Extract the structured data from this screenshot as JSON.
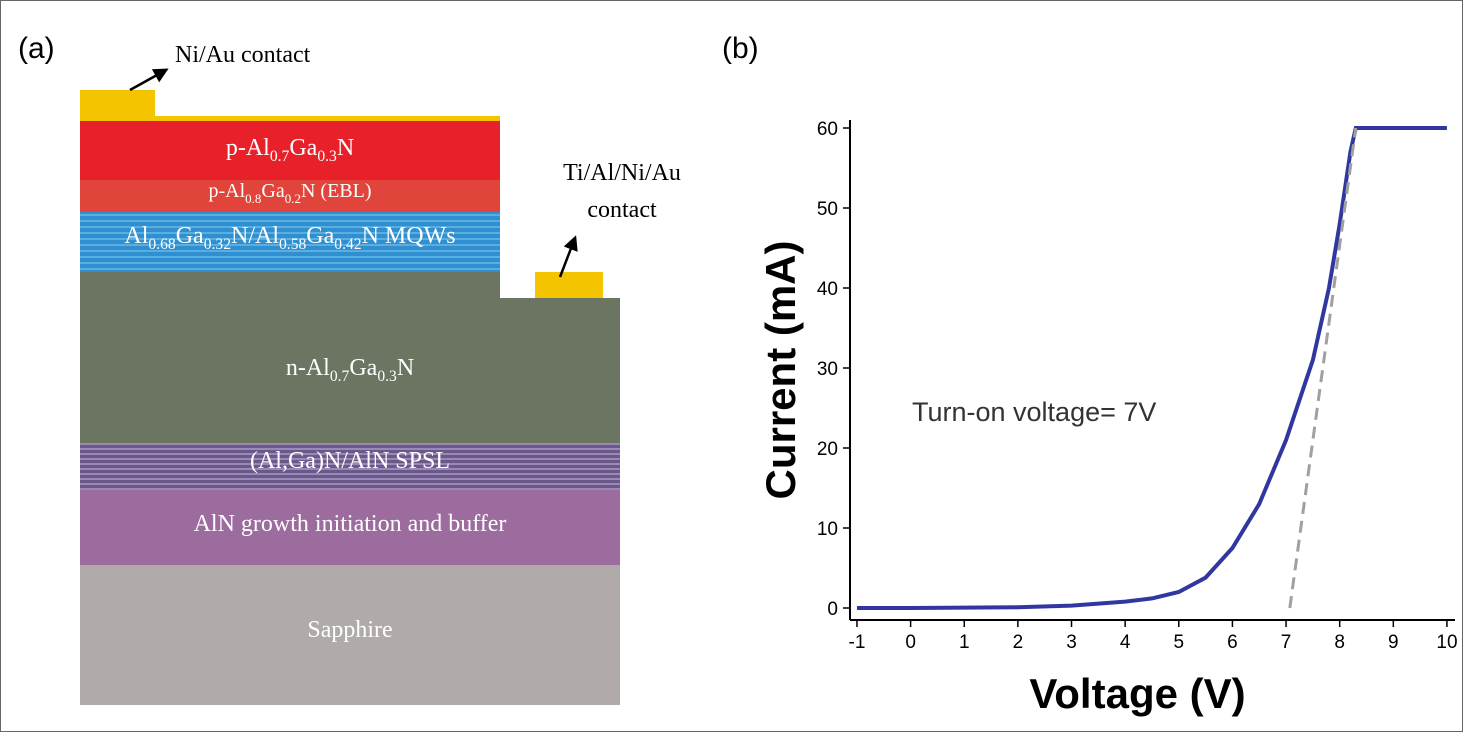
{
  "diagram": {
    "panel_label": "(a)",
    "layers": [
      {
        "parts": [
          "p-Al",
          "0.7",
          "Ga",
          "0.3",
          "N"
        ]
      },
      {
        "parts": [
          "p-Al",
          "0.8",
          "Ga",
          "0.2",
          "N (EBL)"
        ]
      },
      {
        "parts": [
          "Al",
          "0.68",
          "Ga",
          "0.32",
          "N/Al",
          "0.58",
          "Ga",
          "0.42",
          "N MQWs"
        ]
      },
      {
        "parts": [
          "n-Al",
          "0.7",
          "Ga",
          "0.3",
          "N"
        ]
      },
      {
        "parts": [
          "(Al,Ga)N/AlN SPSL"
        ]
      },
      {
        "parts": [
          "AlN growth initiation and buffer"
        ]
      },
      {
        "parts": [
          "Sapphire"
        ]
      }
    ],
    "contacts": [
      {
        "lines": [
          "Ni/Au contact"
        ]
      },
      {
        "lines": [
          "Ti/Al/Ni/Au",
          "contact"
        ]
      }
    ]
  },
  "chart_data": {
    "type": "line",
    "panel_label": "(b)",
    "x_label": "Voltage (V)",
    "y_label": "Current (mA)",
    "annotation": "Turn-on voltage= 7V",
    "xlim": [
      -1.13,
      10.15
    ],
    "ylim": [
      -1.5,
      61
    ],
    "xticks": [
      -1,
      0,
      1,
      2,
      3,
      4,
      5,
      6,
      7,
      8,
      9,
      10
    ],
    "yticks": [
      0,
      10,
      20,
      30,
      40,
      50,
      60
    ],
    "series": [
      {
        "color": "#3038a0",
        "dashed": false,
        "x": [
          -1,
          0,
          1,
          2,
          3,
          4,
          4.5,
          5,
          5.5,
          6,
          6.5,
          7,
          7.5,
          7.8,
          8,
          8.2,
          8.3,
          10
        ],
        "values": [
          0,
          0,
          0.05,
          0.1,
          0.3,
          0.8,
          1.2,
          2,
          3.8,
          7.5,
          13,
          21,
          31,
          40,
          48,
          57,
          60,
          60
        ]
      },
      {
        "color": "#a0a0a0",
        "dashed": true,
        "x": [
          7.07,
          8.3
        ],
        "values": [
          0,
          60
        ]
      }
    ]
  }
}
